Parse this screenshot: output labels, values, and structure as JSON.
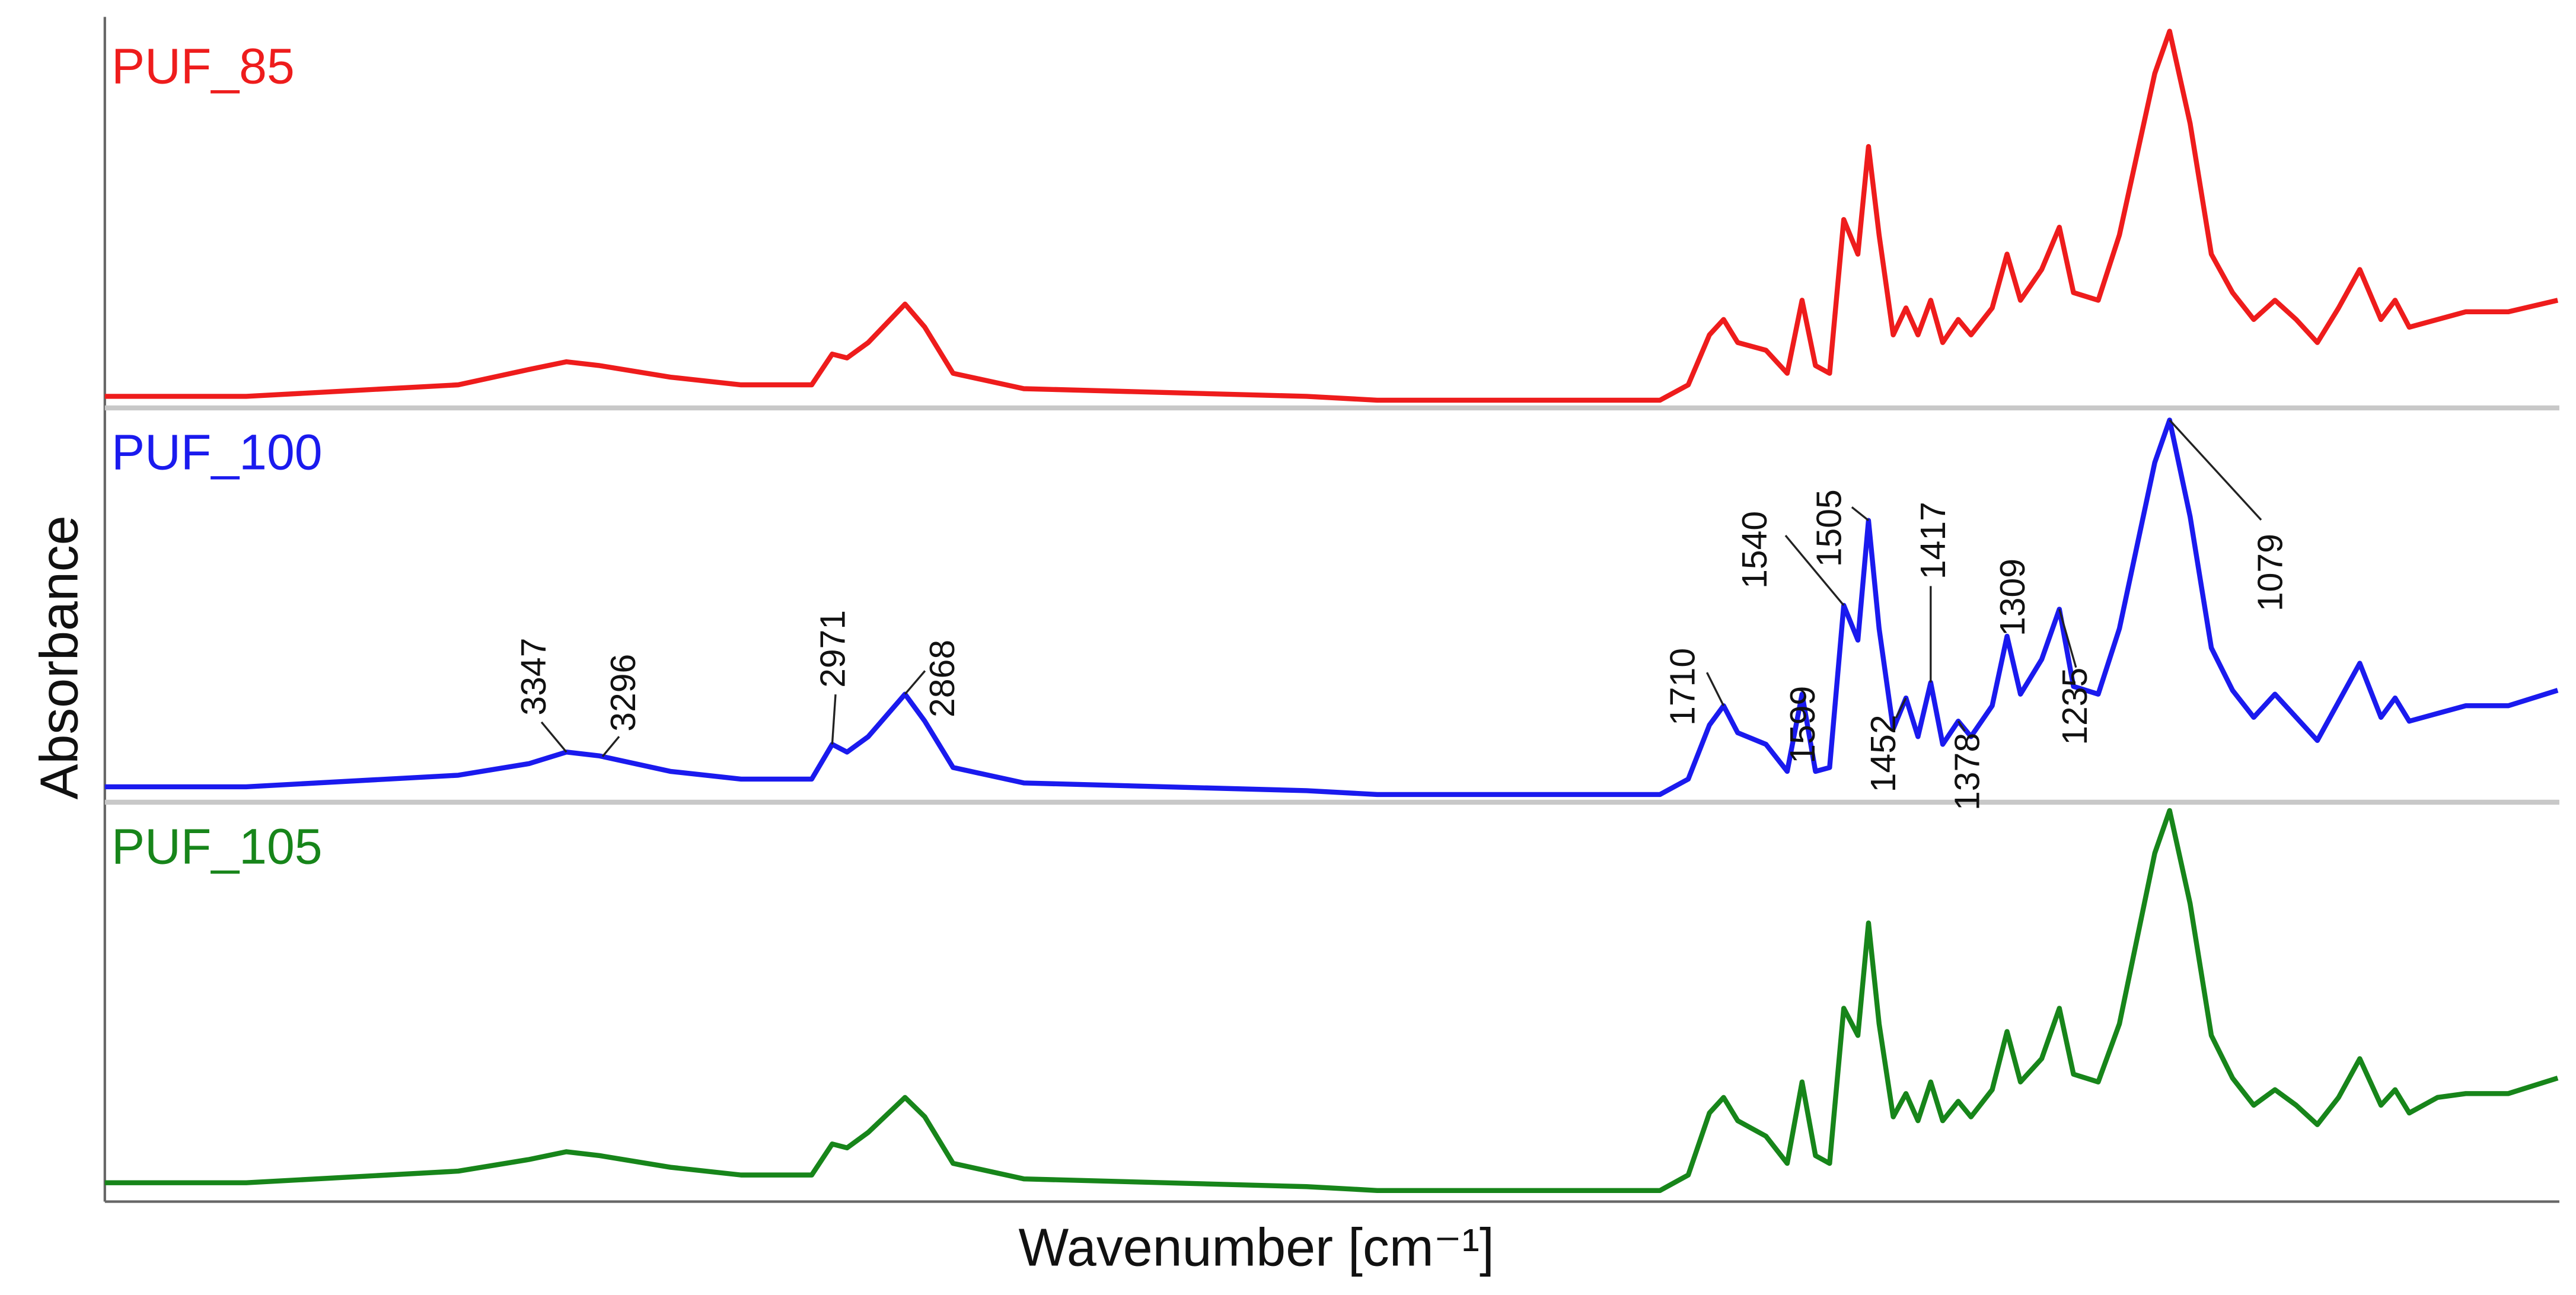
{
  "chart_data": [
    {
      "type": "line",
      "xlim": [
        4000,
        530
      ],
      "ylim": [
        0,
        1
      ],
      "x": [
        4000,
        3800,
        3600,
        3500,
        3400,
        3347,
        3300,
        3200,
        3100,
        3000,
        2971,
        2950,
        2920,
        2868,
        2840,
        2800,
        2700,
        2500,
        2300,
        2200,
        2100,
        2000,
        1900,
        1800,
        1760,
        1730,
        1710,
        1690,
        1650,
        1620,
        1599,
        1580,
        1560,
        1540,
        1520,
        1505,
        1490,
        1470,
        1452,
        1435,
        1417,
        1400,
        1378,
        1360,
        1330,
        1309,
        1290,
        1260,
        1235,
        1215,
        1180,
        1150,
        1100,
        1079,
        1050,
        1020,
        990,
        960,
        930,
        900,
        870,
        840,
        810,
        780,
        760,
        740,
        700,
        660,
        600,
        530
      ],
      "series": [
        {
          "name": "PUF_85",
          "color": "#ee1c1c",
          "values": [
            0.03,
            0.03,
            0.05,
            0.06,
            0.1,
            0.12,
            0.11,
            0.08,
            0.06,
            0.06,
            0.14,
            0.13,
            0.17,
            0.27,
            0.21,
            0.09,
            0.05,
            0.04,
            0.03,
            0.02,
            0.02,
            0.02,
            0.02,
            0.02,
            0.06,
            0.19,
            0.23,
            0.17,
            0.15,
            0.09,
            0.28,
            0.11,
            0.09,
            0.49,
            0.4,
            0.68,
            0.45,
            0.19,
            0.26,
            0.19,
            0.28,
            0.17,
            0.23,
            0.19,
            0.26,
            0.4,
            0.28,
            0.36,
            0.47,
            0.3,
            0.28,
            0.45,
            0.87,
            0.98,
            0.74,
            0.4,
            0.3,
            0.23,
            0.28,
            0.23,
            0.17,
            0.26,
            0.36,
            0.23,
            0.28,
            0.21,
            0.23,
            0.25,
            0.25,
            0.28
          ]
        }
      ]
    },
    {
      "type": "line",
      "xlim": [
        4000,
        530
      ],
      "ylim": [
        0,
        1
      ],
      "ylabel": "Absorbance",
      "x": [
        4000,
        3800,
        3600,
        3500,
        3400,
        3347,
        3300,
        3200,
        3100,
        3000,
        2971,
        2950,
        2920,
        2868,
        2840,
        2800,
        2700,
        2500,
        2300,
        2200,
        2100,
        2000,
        1900,
        1800,
        1760,
        1730,
        1710,
        1690,
        1650,
        1620,
        1599,
        1580,
        1560,
        1540,
        1520,
        1505,
        1490,
        1470,
        1452,
        1435,
        1417,
        1400,
        1378,
        1360,
        1330,
        1309,
        1290,
        1260,
        1235,
        1215,
        1180,
        1150,
        1100,
        1079,
        1050,
        1020,
        990,
        960,
        930,
        900,
        870,
        840,
        810,
        780,
        760,
        740,
        700,
        660,
        600,
        530
      ],
      "series": [
        {
          "name": "PUF_100",
          "color": "#1a1aee",
          "values": [
            0.04,
            0.04,
            0.06,
            0.07,
            0.1,
            0.13,
            0.12,
            0.08,
            0.06,
            0.06,
            0.15,
            0.13,
            0.17,
            0.28,
            0.21,
            0.09,
            0.05,
            0.04,
            0.03,
            0.02,
            0.02,
            0.02,
            0.02,
            0.02,
            0.06,
            0.2,
            0.25,
            0.18,
            0.15,
            0.08,
            0.28,
            0.08,
            0.09,
            0.51,
            0.42,
            0.73,
            0.45,
            0.19,
            0.27,
            0.17,
            0.31,
            0.15,
            0.21,
            0.17,
            0.25,
            0.43,
            0.28,
            0.37,
            0.5,
            0.3,
            0.28,
            0.45,
            0.88,
            0.99,
            0.74,
            0.4,
            0.29,
            0.22,
            0.28,
            0.22,
            0.16,
            0.26,
            0.36,
            0.22,
            0.27,
            0.21,
            0.23,
            0.25,
            0.25,
            0.29
          ]
        }
      ],
      "annotations": [
        3347,
        3296,
        2971,
        2868,
        1710,
        1599,
        1540,
        1505,
        1452,
        1417,
        1378,
        1309,
        1235,
        1079
      ]
    },
    {
      "type": "line",
      "xlim": [
        4000,
        530
      ],
      "ylim": [
        0,
        1
      ],
      "xlabel": "Wavenumber [cm⁻¹]",
      "x": [
        4000,
        3800,
        3600,
        3500,
        3400,
        3347,
        3300,
        3200,
        3100,
        3000,
        2971,
        2950,
        2920,
        2868,
        2840,
        2800,
        2700,
        2500,
        2300,
        2200,
        2100,
        2000,
        1900,
        1800,
        1760,
        1730,
        1710,
        1690,
        1650,
        1620,
        1599,
        1580,
        1560,
        1540,
        1520,
        1505,
        1490,
        1470,
        1452,
        1435,
        1417,
        1400,
        1378,
        1360,
        1330,
        1309,
        1290,
        1260,
        1235,
        1215,
        1180,
        1150,
        1100,
        1079,
        1050,
        1020,
        990,
        960,
        930,
        900,
        870,
        840,
        810,
        780,
        760,
        740,
        700,
        660,
        600,
        530
      ],
      "series": [
        {
          "name": "PUF_105",
          "color": "#17851a",
          "values": [
            0.04,
            0.04,
            0.06,
            0.07,
            0.1,
            0.12,
            0.11,
            0.08,
            0.06,
            0.06,
            0.14,
            0.13,
            0.17,
            0.26,
            0.21,
            0.09,
            0.05,
            0.04,
            0.03,
            0.02,
            0.02,
            0.02,
            0.02,
            0.02,
            0.06,
            0.22,
            0.26,
            0.2,
            0.16,
            0.09,
            0.3,
            0.11,
            0.09,
            0.49,
            0.42,
            0.71,
            0.45,
            0.21,
            0.27,
            0.2,
            0.3,
            0.2,
            0.25,
            0.21,
            0.28,
            0.43,
            0.3,
            0.36,
            0.49,
            0.32,
            0.3,
            0.45,
            0.89,
            1.0,
            0.76,
            0.42,
            0.31,
            0.24,
            0.28,
            0.24,
            0.19,
            0.26,
            0.36,
            0.24,
            0.28,
            0.22,
            0.26,
            0.27,
            0.27,
            0.31
          ]
        }
      ]
    }
  ]
}
